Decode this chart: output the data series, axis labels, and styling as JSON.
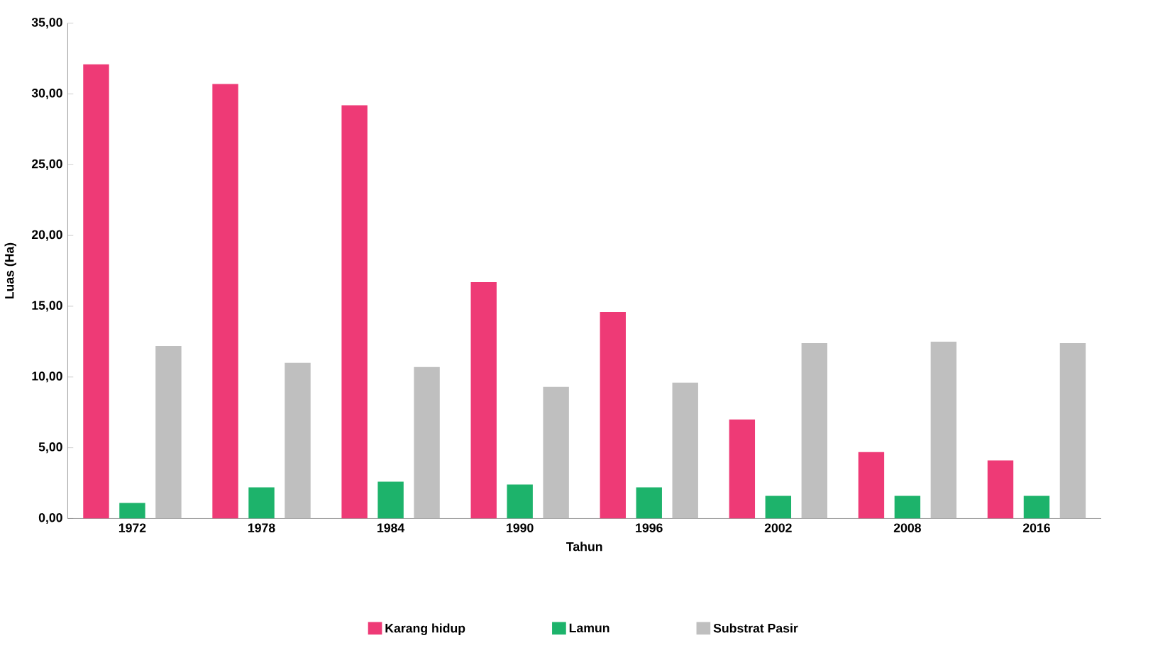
{
  "chart_data": {
    "type": "bar",
    "xlabel": "Tahun",
    "ylabel": "Luas (Ha)",
    "categories": [
      "1972",
      "1978",
      "1984",
      "1990",
      "1996",
      "2002",
      "2008",
      "2016"
    ],
    "series": [
      {
        "name": "Karang hidup",
        "color": "#ee3a76",
        "values": [
          32.1,
          30.7,
          29.2,
          16.7,
          14.6,
          7.0,
          4.7,
          4.1
        ]
      },
      {
        "name": "Lamun",
        "color": "#1db36b",
        "values": [
          1.1,
          2.2,
          2.6,
          2.4,
          2.2,
          1.6,
          1.6,
          1.6
        ]
      },
      {
        "name": "Substrat Pasir",
        "color": "#bfbfbf",
        "values": [
          12.2,
          11.0,
          10.7,
          9.3,
          9.6,
          12.4,
          12.5,
          12.4
        ]
      }
    ],
    "ylim": [
      0,
      35
    ],
    "yticks": [
      {
        "value": 0,
        "label": "0,00"
      },
      {
        "value": 5,
        "label": "5,00"
      },
      {
        "value": 10,
        "label": "10,00"
      },
      {
        "value": 15,
        "label": "15,00"
      },
      {
        "value": 20,
        "label": "20,00"
      },
      {
        "value": 25,
        "label": "25,00"
      },
      {
        "value": 30,
        "label": "30,00"
      },
      {
        "value": 35,
        "label": "35,00"
      }
    ],
    "legend": "bottom"
  }
}
